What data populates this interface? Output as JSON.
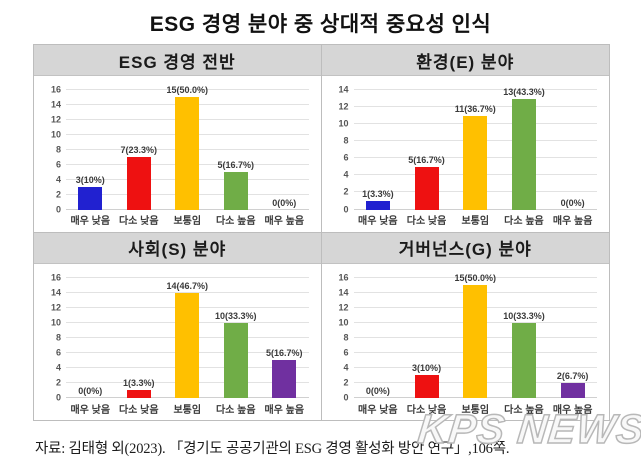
{
  "title": "ESG 경영 분야 중 상대적 중요성 인식",
  "caption": "자료: 김태형 외(2023). 「경기도 공공기관의 ESG 경영 활성화 방안 연구」,106쪽.",
  "watermark": "KPS NEWS",
  "colors": {
    "header_bg": "#d6d6d6",
    "table_border": "#bdbdbd",
    "gridline": "#e2e2e2",
    "bar_blue": "#2121d0",
    "bar_red": "#ee1111",
    "bar_yellow": "#ffc000",
    "bar_green": "#70ad47",
    "bar_purple": "#7030a0"
  },
  "chart_data": [
    {
      "type": "bar",
      "id": "esg-overall",
      "title": "ESG 경영 전반",
      "categories": [
        "매우 낮음",
        "다소 낮음",
        "보통임",
        "다소 높음",
        "매우 높음"
      ],
      "values": [
        3,
        7,
        15,
        5,
        0
      ],
      "value_labels": [
        "3(10%)",
        "7(23.3%)",
        "15(50.0%)",
        "5(16.7%)",
        "0(0%)"
      ],
      "bar_colors": [
        "#2121d0",
        "#ee1111",
        "#ffc000",
        "#70ad47",
        "#7030a0"
      ],
      "ylim": [
        0,
        16
      ],
      "ytick_step": 2,
      "grid": true,
      "legend": "none"
    },
    {
      "type": "bar",
      "id": "environment-e",
      "title": "환경(E) 분야",
      "categories": [
        "매우 낮음",
        "다소 낮음",
        "보통임",
        "다소 높음",
        "매우 높음"
      ],
      "values": [
        1,
        5,
        11,
        13,
        0
      ],
      "value_labels": [
        "1(3.3%)",
        "5(16.7%)",
        "11(36.7%)",
        "13(43.3%)",
        "0(0%)"
      ],
      "bar_colors": [
        "#2121d0",
        "#ee1111",
        "#ffc000",
        "#70ad47",
        "#7030a0"
      ],
      "ylim": [
        0,
        14
      ],
      "ytick_step": 2,
      "grid": true,
      "legend": "none"
    },
    {
      "type": "bar",
      "id": "social-s",
      "title": "사회(S) 분야",
      "categories": [
        "매우 낮음",
        "다소 낮음",
        "보통임",
        "다소 높음",
        "매우 높음"
      ],
      "values": [
        0,
        1,
        14,
        10,
        5
      ],
      "value_labels": [
        "0(0%)",
        "1(3.3%)",
        "14(46.7%)",
        "10(33.3%)",
        "5(16.7%)"
      ],
      "bar_colors": [
        "#2121d0",
        "#ee1111",
        "#ffc000",
        "#70ad47",
        "#7030a0"
      ],
      "ylim": [
        0,
        16
      ],
      "ytick_step": 2,
      "grid": true,
      "legend": "none"
    },
    {
      "type": "bar",
      "id": "governance-g",
      "title": "거버넌스(G) 분야",
      "categories": [
        "매우 낮음",
        "다소 낮음",
        "보통임",
        "다소 높음",
        "매우 높음"
      ],
      "values": [
        0,
        3,
        15,
        10,
        2
      ],
      "value_labels": [
        "0(0%)",
        "3(10%)",
        "15(50.0%)",
        "10(33.3%)",
        "2(6.7%)"
      ],
      "bar_colors": [
        "#2121d0",
        "#ee1111",
        "#ffc000",
        "#70ad47",
        "#7030a0"
      ],
      "ylim": [
        0,
        16
      ],
      "ytick_step": 2,
      "grid": true,
      "legend": "none"
    }
  ]
}
